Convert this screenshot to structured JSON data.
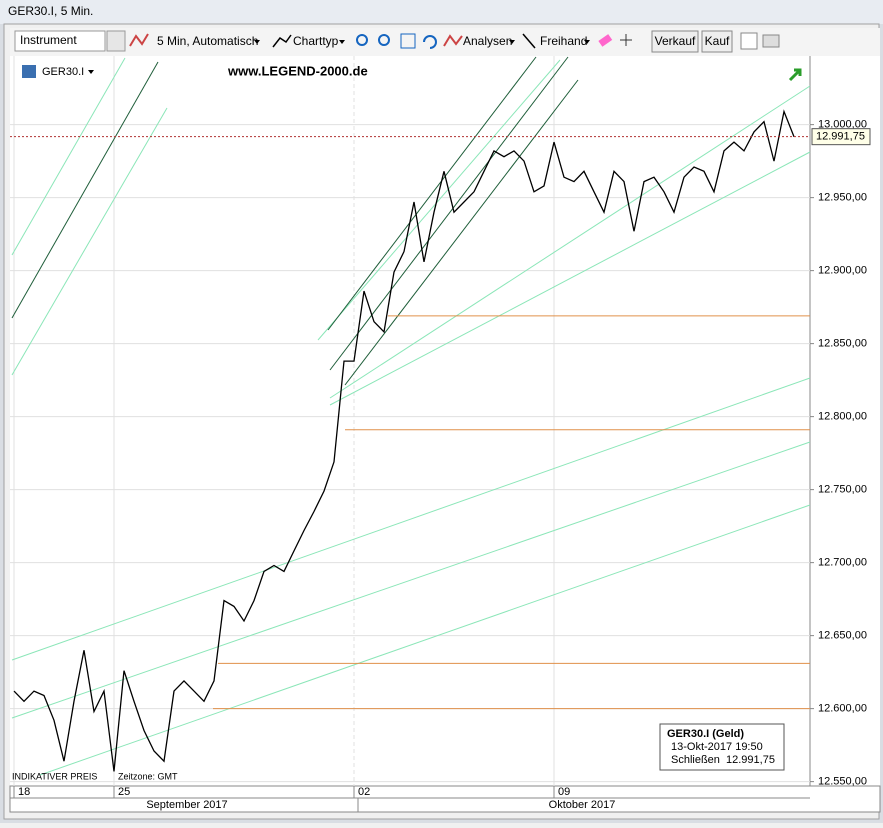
{
  "window_title": "GER30.I, 5 Min.",
  "toolbar": {
    "instrument": "Instrument",
    "period": "5 Min,  Automatisch",
    "chart_type": "Charttyp",
    "analyses": "Analysen",
    "freehand": "Freihand",
    "sell": "Verkauf",
    "buy": "Kauf"
  },
  "chart_data": {
    "type": "line",
    "title": "GER30.I",
    "watermark": "www.LEGEND-2000.de",
    "footnotes": [
      "INDIKATIVER PREIS",
      "Zeitzone: GMT"
    ],
    "categories": [
      "18",
      null,
      null,
      null,
      null,
      null,
      null,
      null,
      null,
      null,
      "25",
      null,
      null,
      null,
      null,
      null,
      null,
      null,
      null,
      null,
      null,
      null,
      null,
      null,
      null,
      null,
      null,
      null,
      null,
      null,
      null,
      null,
      null,
      null,
      "02",
      null,
      null,
      null,
      null,
      null,
      null,
      null,
      null,
      null,
      null,
      null,
      null,
      null,
      null,
      null,
      null,
      null,
      null,
      null,
      "09",
      null,
      null,
      null,
      null,
      null,
      null,
      null,
      null,
      null,
      null,
      null,
      null,
      null,
      null,
      null,
      null,
      null,
      null,
      null,
      null,
      null,
      null,
      null,
      null
    ],
    "months": [
      "September 2017",
      "Oktober 2017"
    ],
    "series": [
      {
        "name": "GER30.I",
        "color": "#000000",
        "values": [
          12612,
          12605,
          12612,
          12609,
          12592,
          12564,
          12605,
          12640,
          12598,
          12612,
          12557,
          12626,
          12605,
          12585,
          12571,
          12564,
          12612,
          12619,
          12612,
          12605,
          12619,
          12674,
          12670,
          12660,
          12674,
          12694,
          12698,
          12694,
          12708,
          12722,
          12735,
          12749,
          12769,
          12838,
          12838,
          12886,
          12865,
          12858,
          12899,
          12913,
          12947,
          12906,
          12940,
          12968,
          12940,
          12947,
          12954,
          12968,
          12982,
          12978,
          12982,
          12975,
          12954,
          12958,
          12988,
          12964,
          12961,
          12968,
          12954,
          12940,
          12968,
          12961,
          12927,
          12961,
          12964,
          12954,
          12940,
          12964,
          12971,
          12968,
          12954,
          12982,
          12988,
          12982,
          12995,
          13002,
          12975,
          13009,
          12991.75
        ]
      }
    ],
    "last_price": {
      "value": 12991.75,
      "label": "12.991,75"
    },
    "levels": [
      12869,
      12791,
      12631,
      12600
    ],
    "ylim": [
      12547,
      13047
    ],
    "yticks": [
      {
        "value": 12550,
        "label": "12.550,00"
      },
      {
        "value": 12600,
        "label": "12.600,00"
      },
      {
        "value": 12650,
        "label": "12.650,00"
      },
      {
        "value": 12700,
        "label": "12.700,00"
      },
      {
        "value": 12750,
        "label": "12.750,00"
      },
      {
        "value": 12800,
        "label": "12.800,00"
      },
      {
        "value": 12850,
        "label": "12.850,00"
      },
      {
        "value": 12900,
        "label": "12.900,00"
      },
      {
        "value": 12950,
        "label": "12.950,00"
      },
      {
        "value": 13000,
        "label": "13.000,00"
      }
    ],
    "grid": true
  },
  "info_box": {
    "title": "GER30.I (Geld)",
    "time": "13-Okt-2017 19:50",
    "close_label": "Schließen",
    "close": "12.991,75"
  }
}
